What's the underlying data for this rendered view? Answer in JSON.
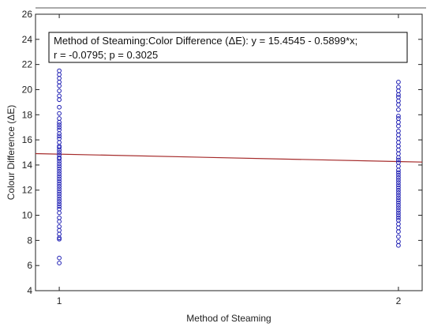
{
  "chart_data": {
    "type": "scatter",
    "xlabel": "Method of Steaming",
    "ylabel": "Colour Difference (ΔE)",
    "x_ticks": [
      "1",
      "2"
    ],
    "x_tick_values": [
      1,
      2
    ],
    "xlim": [
      0.93,
      2.07
    ],
    "ylim": [
      4,
      26
    ],
    "y_ticks": [
      4,
      6,
      8,
      10,
      12,
      14,
      16,
      18,
      20,
      22,
      24,
      26
    ],
    "grid": false,
    "annotation": {
      "line1": "Method of Steaming:Color Difference (ΔE):   y = 15.4545 - 0.5899*x;",
      "line2": "r = -0.0795; p = 0.3025"
    },
    "regression": {
      "intercept": 15.4545,
      "slope": -0.5899,
      "color": "#a52a2a"
    },
    "marker_color": "#1f1fb4",
    "series": [
      {
        "x": 1,
        "values": [
          21.5,
          21.2,
          20.9,
          20.6,
          20.3,
          19.9,
          19.5,
          19.2,
          18.6,
          18.1,
          17.7,
          17.4,
          17.2,
          17.0,
          16.8,
          16.5,
          16.3,
          16.1,
          15.8,
          15.5,
          15.4,
          15.2,
          15.0,
          14.8,
          14.6,
          14.5,
          14.3,
          14.1,
          13.9,
          13.7,
          13.5,
          13.3,
          13.1,
          12.9,
          12.7,
          12.5,
          12.3,
          12.1,
          11.9,
          11.7,
          11.5,
          11.3,
          11.1,
          10.9,
          10.7,
          10.5,
          10.2,
          9.8,
          9.5,
          9.1,
          8.8,
          8.5,
          8.2,
          8.1,
          6.6,
          6.2
        ]
      },
      {
        "x": 2,
        "values": [
          20.6,
          20.2,
          19.9,
          19.6,
          19.4,
          19.1,
          18.8,
          18.4,
          17.9,
          17.7,
          17.4,
          17.1,
          16.7,
          16.4,
          16.1,
          15.8,
          15.5,
          15.2,
          14.9,
          14.6,
          14.4,
          14.2,
          13.9,
          13.6,
          13.4,
          13.2,
          13.0,
          12.8,
          12.6,
          12.4,
          12.2,
          12.0,
          11.8,
          11.6,
          11.4,
          11.2,
          11.0,
          10.8,
          10.6,
          10.4,
          10.2,
          10.0,
          9.8,
          9.6,
          9.3,
          9.0,
          8.7,
          8.3,
          7.9,
          7.6
        ]
      }
    ]
  }
}
